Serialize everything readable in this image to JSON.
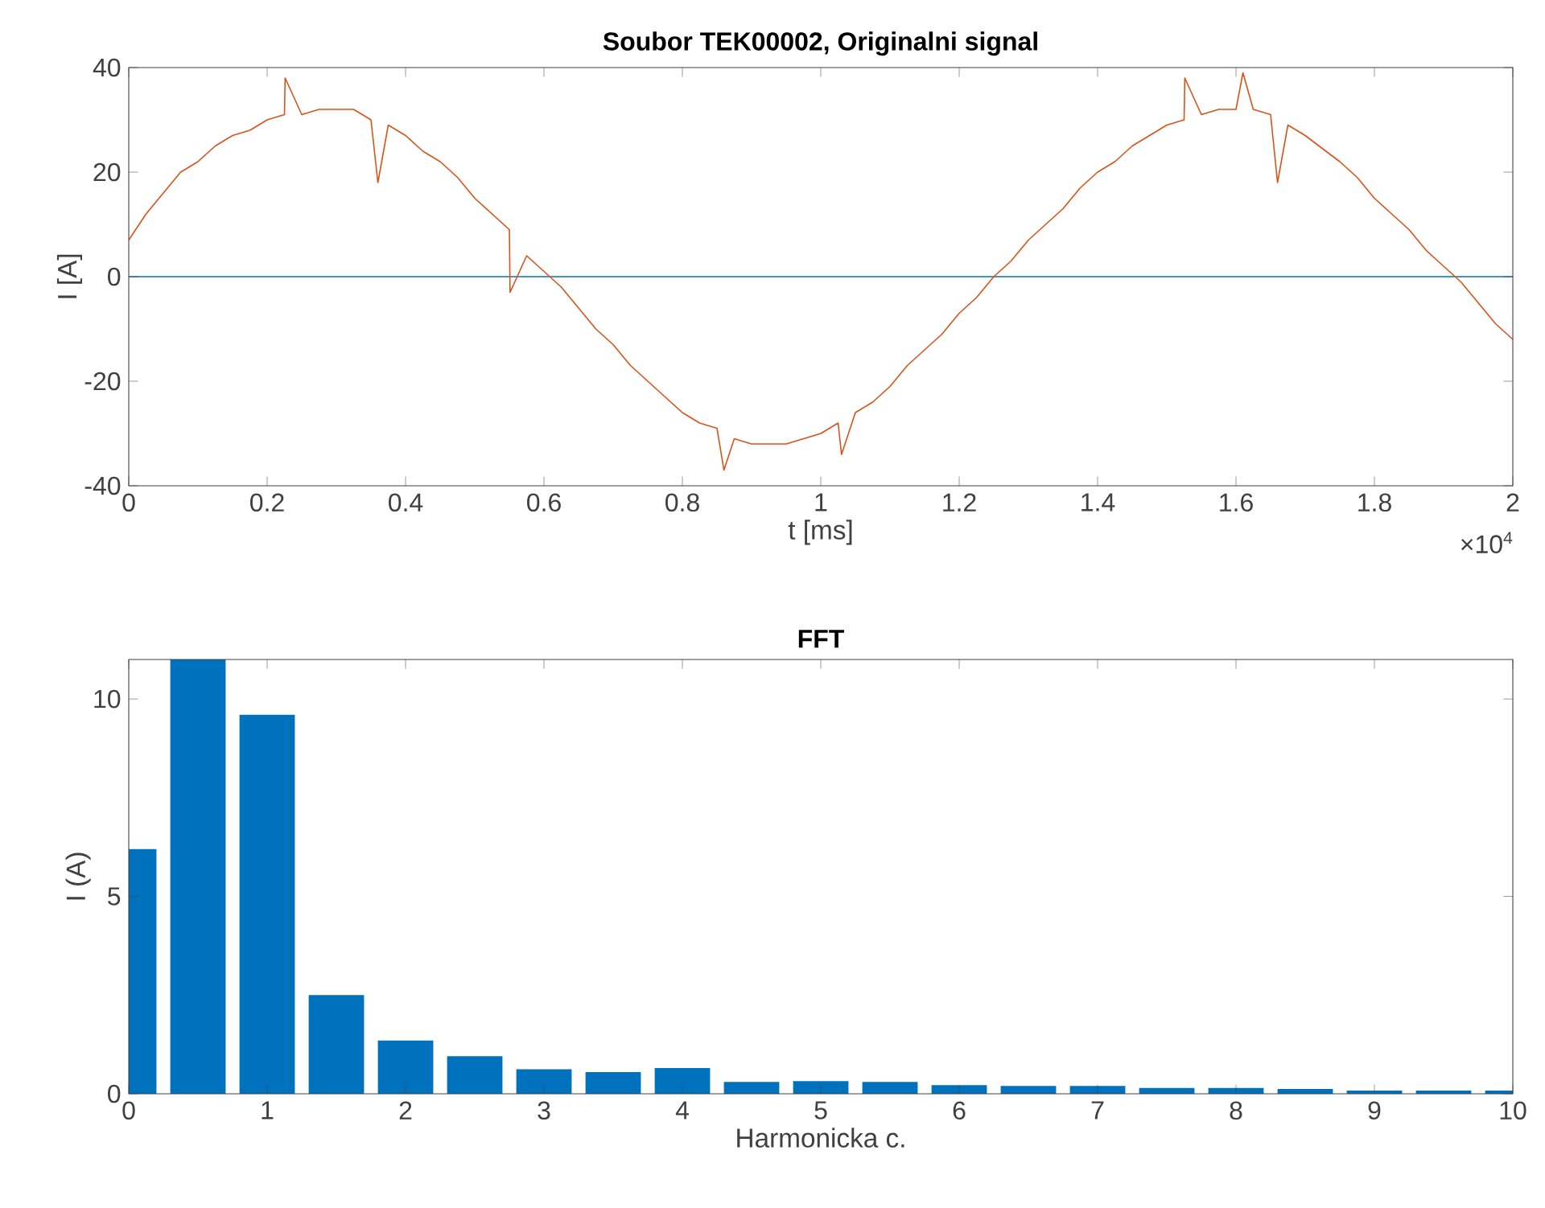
{
  "chart_data": [
    {
      "type": "line",
      "title": "Soubor TEK00002, Originalni signal",
      "xlabel": "t [ms]",
      "ylabel": "I [A]",
      "x": [
        0,
        0.025,
        0.05,
        0.075,
        0.1,
        0.125,
        0.15,
        0.175,
        0.2,
        0.225,
        0.226,
        0.25,
        0.275,
        0.3,
        0.325,
        0.35,
        0.36,
        0.375,
        0.4,
        0.425,
        0.45,
        0.475,
        0.5,
        0.525,
        0.55,
        0.551,
        0.575,
        0.6,
        0.625,
        0.65,
        0.675,
        0.7,
        0.725,
        0.75,
        0.775,
        0.8,
        0.825,
        0.85,
        0.86,
        0.875,
        0.9,
        0.925,
        0.95,
        0.975,
        1,
        1.025,
        1.03,
        1.05,
        1.075,
        1.1,
        1.125,
        1.15,
        1.175,
        1.2,
        1.225,
        1.25,
        1.275,
        1.3,
        1.325,
        1.35,
        1.375,
        1.4,
        1.425,
        1.45,
        1.475,
        1.5,
        1.525,
        1.526,
        1.55,
        1.575,
        1.6,
        1.61,
        1.625,
        1.65,
        1.66,
        1.675,
        1.7,
        1.75,
        1.775,
        1.8,
        1.825,
        1.85,
        1.875,
        1.9,
        1.925,
        1.95,
        1.975,
        2
      ],
      "series": [
        {
          "color": "#d95319",
          "values": [
            7,
            12,
            16,
            20,
            22,
            25,
            27,
            28,
            30,
            31,
            38,
            31,
            32,
            32,
            32,
            30,
            18,
            29,
            27,
            24,
            22,
            19,
            15,
            12,
            9,
            -3,
            4,
            1,
            -2,
            -6,
            -10,
            -13,
            -17,
            -20,
            -23,
            -26,
            -28,
            -29,
            -37,
            -31,
            -32,
            -32,
            -32,
            -31,
            -30,
            -28,
            -34,
            -26,
            -24,
            -21,
            -17,
            -14,
            -11,
            -7,
            -4,
            0,
            3,
            7,
            10,
            13,
            17,
            20,
            22,
            25,
            27,
            29,
            30,
            38,
            31,
            32,
            32,
            39,
            32,
            31,
            18,
            29,
            27,
            22,
            19,
            15,
            12,
            9,
            5,
            2,
            -1,
            -5,
            -9,
            -12
          ]
        }
      ],
      "xlim": [
        0,
        2
      ],
      "xticks": [
        0,
        0.2,
        0.4,
        0.6,
        0.8,
        1,
        1.2,
        1.4,
        1.6,
        1.8,
        2
      ],
      "ylim": [
        -40,
        40
      ],
      "yticks": [
        -40,
        -20,
        0,
        20,
        40
      ],
      "ref_lines": [
        {
          "axis": "y",
          "value": 0,
          "color": "#0072bd"
        }
      ],
      "annotations": [
        "×10$^{4}$"
      ]
    },
    {
      "type": "bar",
      "title": "FFT",
      "xlabel": "Harmonicka c.",
      "ylabel": "I (A)",
      "x": [
        0,
        0.5,
        1,
        1.5,
        2,
        2.5,
        3,
        3.5,
        4,
        4.5,
        5,
        5.5,
        6,
        6.5,
        7,
        7.5,
        8,
        8.5,
        9,
        9.5,
        10
      ],
      "values": [
        6.2,
        11,
        9.6,
        2.5,
        1.35,
        0.95,
        0.62,
        0.55,
        0.65,
        0.3,
        0.32,
        0.3,
        0.22,
        0.2,
        0.2,
        0.15,
        0.15,
        0.12,
        0.08,
        0.08,
        0.08
      ],
      "color": "#0072bd",
      "xlim": [
        0,
        10
      ],
      "xticks": [
        0,
        1,
        2,
        3,
        4,
        5,
        6,
        7,
        8,
        9,
        10
      ],
      "ylim": [
        0,
        11
      ],
      "yticks": [
        0,
        5,
        10
      ]
    }
  ]
}
